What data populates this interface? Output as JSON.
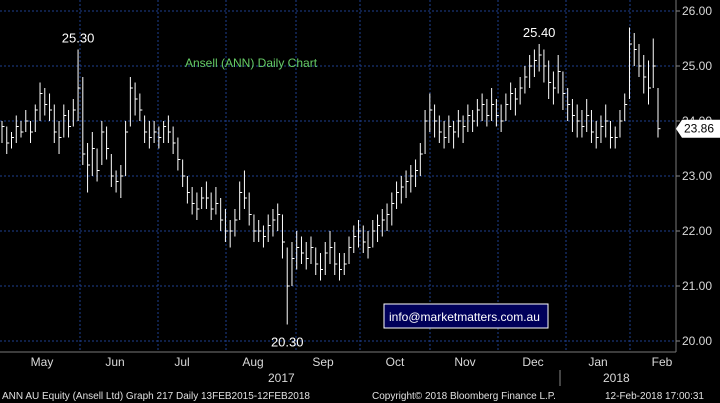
{
  "chart_data": {
    "type": "ohlc",
    "title": "Ansell (ANN) Daily Chart",
    "y_range": [
      19.8,
      26.2
    ],
    "y_ticks": [
      "20.00",
      "21.00",
      "22.00",
      "23.00",
      "24.00",
      "25.00",
      "26.00"
    ],
    "y_tick_values": [
      20,
      21,
      22,
      23,
      24,
      25,
      26
    ],
    "months": [
      "May",
      "Jun",
      "Jul",
      "Aug",
      "Sep",
      "Oct",
      "Nov",
      "Dec",
      "Jan",
      "Feb"
    ],
    "years": [
      "2017",
      "2018"
    ],
    "annotations": [
      {
        "text": "25.30",
        "value": 25.3
      },
      {
        "text": "25.40",
        "value": 25.4
      },
      {
        "text": "20.30",
        "value": 20.3
      }
    ],
    "last_price": {
      "text": "23.86",
      "value": 23.86
    },
    "grid": true,
    "bar_color": "#ffffff",
    "grid_color": "#1e3f8f",
    "series": [
      {
        "h": 24.0,
        "l": 23.6,
        "c": 23.9
      },
      {
        "h": 23.9,
        "l": 23.4,
        "c": 23.6
      },
      {
        "h": 23.8,
        "l": 23.5,
        "c": 23.7
      },
      {
        "h": 24.1,
        "l": 23.6,
        "c": 23.9
      },
      {
        "h": 24.0,
        "l": 23.7,
        "c": 23.8
      },
      {
        "h": 24.2,
        "l": 23.8,
        "c": 24.0
      },
      {
        "h": 24.0,
        "l": 23.6,
        "c": 23.8
      },
      {
        "h": 24.3,
        "l": 23.8,
        "c": 24.2
      },
      {
        "h": 24.7,
        "l": 24.0,
        "c": 24.5
      },
      {
        "h": 24.6,
        "l": 24.1,
        "c": 24.3
      },
      {
        "h": 24.5,
        "l": 24.0,
        "c": 24.2
      },
      {
        "h": 24.3,
        "l": 23.6,
        "c": 23.8
      },
      {
        "h": 24.0,
        "l": 23.4,
        "c": 23.7
      },
      {
        "h": 24.3,
        "l": 23.7,
        "c": 24.1
      },
      {
        "h": 24.2,
        "l": 23.7,
        "c": 23.9
      },
      {
        "h": 24.4,
        "l": 23.9,
        "c": 24.2
      },
      {
        "h": 25.3,
        "l": 24.0,
        "c": 24.6
      },
      {
        "h": 24.8,
        "l": 23.2,
        "c": 23.4
      },
      {
        "h": 23.6,
        "l": 22.7,
        "c": 23.2
      },
      {
        "h": 23.8,
        "l": 23.0,
        "c": 23.5
      },
      {
        "h": 23.5,
        "l": 22.9,
        "c": 23.1
      },
      {
        "h": 24.0,
        "l": 23.2,
        "c": 23.8
      },
      {
        "h": 23.9,
        "l": 23.3,
        "c": 23.5
      },
      {
        "h": 23.4,
        "l": 22.8,
        "c": 23.0
      },
      {
        "h": 23.1,
        "l": 22.7,
        "c": 22.9
      },
      {
        "h": 23.2,
        "l": 22.6,
        "c": 23.0
      },
      {
        "h": 24.0,
        "l": 23.0,
        "c": 23.8
      },
      {
        "h": 24.8,
        "l": 23.9,
        "c": 24.6
      },
      {
        "h": 24.7,
        "l": 24.1,
        "c": 24.4
      },
      {
        "h": 24.5,
        "l": 24.0,
        "c": 24.2
      },
      {
        "h": 24.1,
        "l": 23.6,
        "c": 23.8
      },
      {
        "h": 24.0,
        "l": 23.5,
        "c": 23.7
      },
      {
        "h": 24.0,
        "l": 23.6,
        "c": 23.8
      },
      {
        "h": 23.9,
        "l": 23.5,
        "c": 23.7
      },
      {
        "h": 24.0,
        "l": 23.6,
        "c": 23.9
      },
      {
        "h": 24.1,
        "l": 23.6,
        "c": 23.8
      },
      {
        "h": 23.9,
        "l": 23.4,
        "c": 23.6
      },
      {
        "h": 23.7,
        "l": 23.1,
        "c": 23.3
      },
      {
        "h": 23.3,
        "l": 22.8,
        "c": 23.0
      },
      {
        "h": 23.0,
        "l": 22.5,
        "c": 22.7
      },
      {
        "h": 22.8,
        "l": 22.3,
        "c": 22.5
      },
      {
        "h": 22.7,
        "l": 22.2,
        "c": 22.4
      },
      {
        "h": 22.8,
        "l": 22.4,
        "c": 22.6
      },
      {
        "h": 22.9,
        "l": 22.4,
        "c": 22.6
      },
      {
        "h": 22.7,
        "l": 22.2,
        "c": 22.4
      },
      {
        "h": 22.8,
        "l": 22.3,
        "c": 22.5
      },
      {
        "h": 22.6,
        "l": 22.0,
        "c": 22.2
      },
      {
        "h": 22.4,
        "l": 21.8,
        "c": 22.0
      },
      {
        "h": 22.2,
        "l": 21.7,
        "c": 22.0
      },
      {
        "h": 22.4,
        "l": 21.9,
        "c": 22.2
      },
      {
        "h": 22.9,
        "l": 22.2,
        "c": 22.7
      },
      {
        "h": 23.1,
        "l": 22.4,
        "c": 22.6
      },
      {
        "h": 22.7,
        "l": 22.1,
        "c": 22.3
      },
      {
        "h": 22.3,
        "l": 21.8,
        "c": 22.0
      },
      {
        "h": 22.2,
        "l": 21.8,
        "c": 22.0
      },
      {
        "h": 22.1,
        "l": 21.7,
        "c": 21.9
      },
      {
        "h": 22.3,
        "l": 21.8,
        "c": 22.1
      },
      {
        "h": 22.4,
        "l": 21.9,
        "c": 22.2
      },
      {
        "h": 22.5,
        "l": 22.0,
        "c": 22.3
      },
      {
        "h": 22.3,
        "l": 21.5,
        "c": 21.8
      },
      {
        "h": 21.7,
        "l": 20.3,
        "c": 21.0
      },
      {
        "h": 21.8,
        "l": 21.0,
        "c": 21.5
      },
      {
        "h": 22.0,
        "l": 21.3,
        "c": 21.7
      },
      {
        "h": 21.9,
        "l": 21.4,
        "c": 21.6
      },
      {
        "h": 21.8,
        "l": 21.3,
        "c": 21.5
      },
      {
        "h": 21.9,
        "l": 21.4,
        "c": 21.7
      },
      {
        "h": 21.7,
        "l": 21.2,
        "c": 21.4
      },
      {
        "h": 21.6,
        "l": 21.1,
        "c": 21.3
      },
      {
        "h": 21.8,
        "l": 21.2,
        "c": 21.6
      },
      {
        "h": 22.0,
        "l": 21.4,
        "c": 21.7
      },
      {
        "h": 21.8,
        "l": 21.2,
        "c": 21.4
      },
      {
        "h": 21.6,
        "l": 21.1,
        "c": 21.3
      },
      {
        "h": 21.6,
        "l": 21.2,
        "c": 21.4
      },
      {
        "h": 21.9,
        "l": 21.4,
        "c": 21.7
      },
      {
        "h": 22.1,
        "l": 21.6,
        "c": 21.9
      },
      {
        "h": 22.2,
        "l": 21.7,
        "c": 22.0
      },
      {
        "h": 22.1,
        "l": 21.6,
        "c": 21.8
      },
      {
        "h": 22.0,
        "l": 21.5,
        "c": 21.7
      },
      {
        "h": 22.2,
        "l": 21.7,
        "c": 22.0
      },
      {
        "h": 22.3,
        "l": 21.8,
        "c": 22.1
      },
      {
        "h": 22.4,
        "l": 21.9,
        "c": 22.2
      },
      {
        "h": 22.5,
        "l": 22.0,
        "c": 22.3
      },
      {
        "h": 22.7,
        "l": 22.1,
        "c": 22.5
      },
      {
        "h": 22.9,
        "l": 22.4,
        "c": 22.7
      },
      {
        "h": 23.0,
        "l": 22.5,
        "c": 22.8
      },
      {
        "h": 23.1,
        "l": 22.6,
        "c": 22.9
      },
      {
        "h": 23.2,
        "l": 22.7,
        "c": 23.0
      },
      {
        "h": 23.3,
        "l": 22.8,
        "c": 23.1
      },
      {
        "h": 23.6,
        "l": 23.0,
        "c": 23.4
      },
      {
        "h": 24.2,
        "l": 23.4,
        "c": 24.0
      },
      {
        "h": 24.5,
        "l": 23.8,
        "c": 24.2
      },
      {
        "h": 24.3,
        "l": 23.7,
        "c": 24.0
      },
      {
        "h": 24.1,
        "l": 23.6,
        "c": 23.8
      },
      {
        "h": 24.0,
        "l": 23.5,
        "c": 23.7
      },
      {
        "h": 24.1,
        "l": 23.6,
        "c": 23.9
      },
      {
        "h": 24.0,
        "l": 23.5,
        "c": 23.8
      },
      {
        "h": 24.2,
        "l": 23.7,
        "c": 24.0
      },
      {
        "h": 24.1,
        "l": 23.6,
        "c": 23.9
      },
      {
        "h": 24.3,
        "l": 23.8,
        "c": 24.1
      },
      {
        "h": 24.2,
        "l": 23.8,
        "c": 24.0
      },
      {
        "h": 24.4,
        "l": 23.9,
        "c": 24.2
      },
      {
        "h": 24.5,
        "l": 24.0,
        "c": 24.3
      },
      {
        "h": 24.4,
        "l": 23.9,
        "c": 24.1
      },
      {
        "h": 24.6,
        "l": 24.0,
        "c": 24.3
      },
      {
        "h": 24.4,
        "l": 23.9,
        "c": 24.1
      },
      {
        "h": 24.3,
        "l": 23.8,
        "c": 24.0
      },
      {
        "h": 24.5,
        "l": 24.0,
        "c": 24.3
      },
      {
        "h": 24.7,
        "l": 24.2,
        "c": 24.5
      },
      {
        "h": 24.6,
        "l": 24.1,
        "c": 24.4
      },
      {
        "h": 24.8,
        "l": 24.3,
        "c": 24.6
      },
      {
        "h": 25.0,
        "l": 24.5,
        "c": 24.8
      },
      {
        "h": 25.2,
        "l": 24.6,
        "c": 25.0
      },
      {
        "h": 25.3,
        "l": 24.8,
        "c": 25.1
      },
      {
        "h": 25.4,
        "l": 24.9,
        "c": 25.2
      },
      {
        "h": 25.3,
        "l": 24.7,
        "c": 25.0
      },
      {
        "h": 25.1,
        "l": 24.4,
        "c": 24.7
      },
      {
        "h": 24.9,
        "l": 24.3,
        "c": 24.6
      },
      {
        "h": 25.2,
        "l": 24.5,
        "c": 24.9
      },
      {
        "h": 24.9,
        "l": 24.2,
        "c": 24.5
      },
      {
        "h": 24.6,
        "l": 24.0,
        "c": 24.3
      },
      {
        "h": 24.4,
        "l": 23.8,
        "c": 24.1
      },
      {
        "h": 24.3,
        "l": 23.7,
        "c": 24.0
      },
      {
        "h": 24.2,
        "l": 23.7,
        "c": 23.9
      },
      {
        "h": 24.4,
        "l": 23.8,
        "c": 24.1
      },
      {
        "h": 24.2,
        "l": 23.6,
        "c": 23.8
      },
      {
        "h": 24.0,
        "l": 23.5,
        "c": 23.7
      },
      {
        "h": 24.1,
        "l": 23.6,
        "c": 23.9
      },
      {
        "h": 24.3,
        "l": 23.7,
        "c": 24.0
      },
      {
        "h": 24.0,
        "l": 23.5,
        "c": 23.7
      },
      {
        "h": 23.9,
        "l": 23.5,
        "c": 23.7
      },
      {
        "h": 24.2,
        "l": 23.7,
        "c": 24.0
      },
      {
        "h": 24.5,
        "l": 24.0,
        "c": 24.3
      },
      {
        "h": 25.7,
        "l": 24.4,
        "c": 25.4
      },
      {
        "h": 25.6,
        "l": 25.0,
        "c": 25.3
      },
      {
        "h": 25.4,
        "l": 24.8,
        "c": 25.0
      },
      {
        "h": 25.2,
        "l": 24.5,
        "c": 24.8
      },
      {
        "h": 25.1,
        "l": 24.3,
        "c": 24.6
      },
      {
        "h": 25.5,
        "l": 24.6,
        "c": 25.0
      },
      {
        "h": 24.6,
        "l": 23.7,
        "c": 23.86
      }
    ]
  },
  "footer": {
    "left": "ANN AU Equity (Ansell Ltd) Graph 217  Daily 13FEB2015-12FEB2018",
    "center": "Copyright© 2018 Bloomberg Finance L.P.",
    "right": "12-Feb-2018 17:00:31"
  },
  "info_label": "info@marketmatters.com.au"
}
